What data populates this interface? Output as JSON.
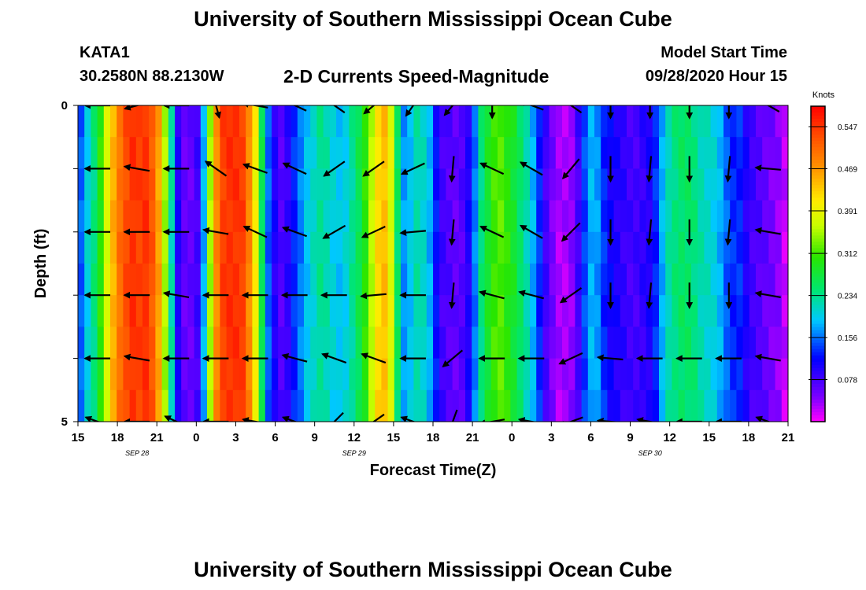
{
  "header": {
    "title": "University of Southern Mississippi Ocean Cube",
    "station": "KATA1",
    "coordinates": "30.2580N 88.2130W",
    "plot_title": "2-D Currents Speed-Magnitude",
    "model_start_label": "Model Start Time",
    "model_start_value": "09/28/2020 Hour 15"
  },
  "footer": {
    "title": "University of Southern Mississippi Ocean Cube"
  },
  "chart_data": {
    "type": "heatmap",
    "title": "2-D Currents Speed-Magnitude",
    "xlabel": "Forecast Time(Z)",
    "ylabel": "Depth (ft)",
    "x_ticks": [
      "15",
      "18",
      "21",
      "0",
      "3",
      "6",
      "9",
      "12",
      "15",
      "18",
      "21",
      "0",
      "3",
      "6",
      "9",
      "12",
      "15",
      "18",
      "21"
    ],
    "x_tick_hours": [
      0,
      3,
      6,
      9,
      12,
      15,
      18,
      21,
      24,
      27,
      30,
      33,
      36,
      39,
      42,
      45,
      48,
      51,
      54
    ],
    "date_labels": [
      {
        "text": "SEP 28",
        "hour": 4.5
      },
      {
        "text": "SEP 29",
        "hour": 21
      },
      {
        "text": "SEP 30",
        "hour": 43.5
      }
    ],
    "y_ticks": [
      "0",
      "5"
    ],
    "ylim": [
      0,
      5
    ],
    "xlim_hours": [
      0,
      54
    ],
    "colorbar": {
      "unit": "Knots",
      "labels": [
        "0.547",
        "0.469",
        "0.391",
        "0.312",
        "0.234",
        "0.156",
        "0.078"
      ],
      "min": 0.0,
      "max": 0.585
    },
    "speed_profile_knots": [
      0.15,
      0.2,
      0.24,
      0.3,
      0.38,
      0.45,
      0.5,
      0.53,
      0.55,
      0.54,
      0.55,
      0.52,
      0.46,
      0.35,
      0.22,
      0.1,
      0.06,
      0.06,
      0.08,
      0.18,
      0.35,
      0.48,
      0.54,
      0.55,
      0.55,
      0.54,
      0.48,
      0.4,
      0.26,
      0.15,
      0.1,
      0.07,
      0.09,
      0.13,
      0.16,
      0.19,
      0.21,
      0.23,
      0.22,
      0.2,
      0.19,
      0.2,
      0.23,
      0.26,
      0.3,
      0.36,
      0.42,
      0.44,
      0.38,
      0.25,
      0.17,
      0.19,
      0.22,
      0.21,
      0.18,
      0.12,
      0.08,
      0.07,
      0.06,
      0.07,
      0.1,
      0.16,
      0.24,
      0.28,
      0.31,
      0.32,
      0.3,
      0.28,
      0.25,
      0.22,
      0.18,
      0.13,
      0.08,
      0.05,
      0.03,
      0.03,
      0.04,
      0.08,
      0.14,
      0.18,
      0.17,
      0.13,
      0.11,
      0.1,
      0.09,
      0.08,
      0.08,
      0.09,
      0.1,
      0.13,
      0.18,
      0.22,
      0.24,
      0.25,
      0.25,
      0.24,
      0.22,
      0.21,
      0.2,
      0.18,
      0.15,
      0.13,
      0.13,
      0.1,
      0.08,
      0.07,
      0.06,
      0.05,
      0.04,
      0.02
    ],
    "vector_hours": [
      1.5,
      4.5,
      7.5,
      10.5,
      13.5,
      16.5,
      19.5,
      22.5,
      25.5,
      28.5,
      31.5,
      34.5,
      37.5,
      40.5,
      43.5,
      46.5,
      49.5,
      52.5
    ],
    "vector_depths_ft": [
      0,
      1,
      2,
      3,
      4,
      5
    ],
    "vector_direction_deg": [
      [
        180,
        165,
        180,
        75,
        190,
        205,
        215,
        140,
        125,
        130,
        90,
        200,
        215,
        90,
        90,
        90,
        90,
        210
      ],
      [
        180,
        190,
        180,
        215,
        200,
        205,
        145,
        145,
        155,
        95,
        205,
        210,
        130,
        90,
        95,
        90,
        95,
        185
      ],
      [
        180,
        180,
        180,
        190,
        205,
        200,
        150,
        155,
        175,
        95,
        205,
        210,
        135,
        90,
        95,
        90,
        95,
        190
      ],
      [
        180,
        180,
        190,
        180,
        180,
        180,
        180,
        175,
        180,
        95,
        195,
        195,
        145,
        90,
        95,
        90,
        90,
        190
      ],
      [
        180,
        190,
        180,
        180,
        180,
        195,
        200,
        200,
        180,
        140,
        180,
        180,
        155,
        185,
        180,
        180,
        180,
        190
      ],
      [
        200,
        180,
        205,
        180,
        190,
        200,
        135,
        145,
        200,
        110,
        170,
        190,
        160,
        185,
        190,
        180,
        180,
        200
      ]
    ]
  }
}
